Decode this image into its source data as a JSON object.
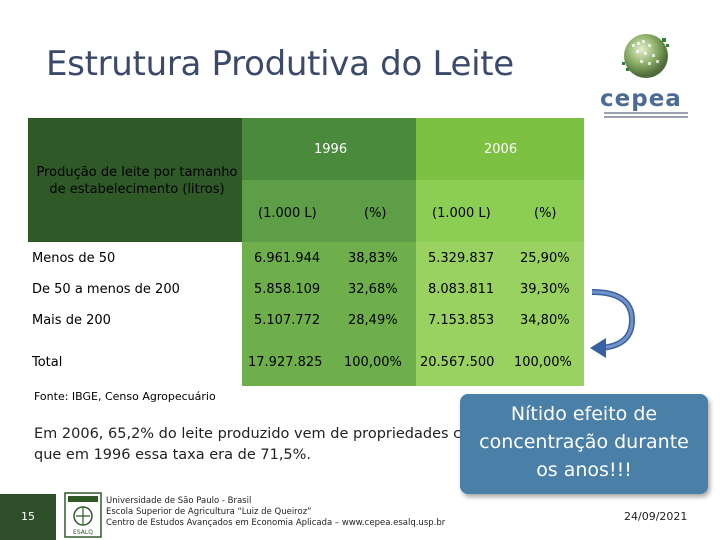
{
  "slide": {
    "title": "Estrutura Produtiva do Leite",
    "logo_text": "cepea",
    "page_number": "15"
  },
  "table": {
    "row_header": "Produção de leite por tamanho de estabelecimento (litros)",
    "year_1996": "1996",
    "year_2006": "2006",
    "sub_headers": [
      "(1.000 L)",
      "(%)",
      "(1.000 L)",
      "(%)"
    ],
    "rows": [
      {
        "label": "Menos de 50",
        "v1996": "6.961.944",
        "p1996": "38,83%",
        "v2006": "5.329.837",
        "p2006": "25,90%"
      },
      {
        "label": "De 50 a menos de 200",
        "v1996": "5.858.109",
        "p1996": "32,68%",
        "v2006": "8.083.811",
        "p2006": "39,30%"
      },
      {
        "label": "Mais de 200",
        "v1996": "5.107.772",
        "p1996": "28,49%",
        "v2006": "7.153.853",
        "p2006": "34,80%"
      },
      {
        "label": "Total",
        "v1996": "17.927.825",
        "p1996": "100,00%",
        "v2006": "20.567.500",
        "p2006": "100,00%"
      }
    ]
  },
  "source": "Fonte: IBGE, Censo Agropecuário",
  "body_line1": "Em 2006, 65,2% do leite produzido vem de propriedades c",
  "body_line2": "que em 1996 essa taxa era de 71,5%.",
  "callout": {
    "line1": "Nítido efeito de",
    "line2": "concentração durante",
    "line3": "os anos!!!"
  },
  "footer": {
    "usp_logo_text": "ESALQ",
    "line1": "Universidade de São Paulo - Brasil",
    "line2": "Escola Superior de Agricultura “Luiz de Queiroz”",
    "line3": "Centro de Estudos Avançados em Economia Aplicada – www.cepea.esalq.usp.br",
    "date": "24/09/2021"
  },
  "colors": {
    "title": "#3b4a6b",
    "table_dark": "#2f5a28",
    "table_mid": "#4a8a3c",
    "table_light": "#7cc142",
    "callout": "#4a7fa8",
    "arrow": "#3a5fa0"
  }
}
